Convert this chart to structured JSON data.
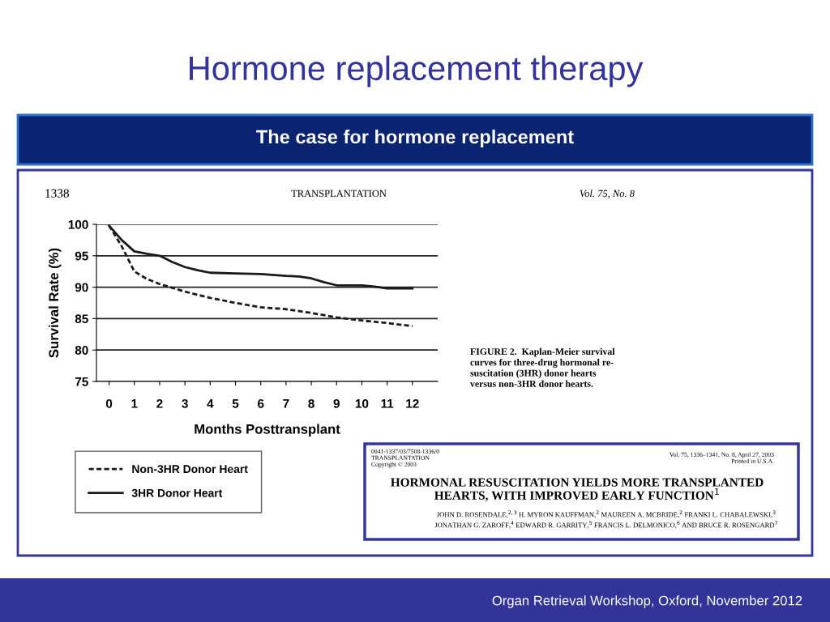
{
  "chart_data": {
    "type": "line",
    "title": "Hormone replacement therapy",
    "subtitle": "The case for hormone replacement",
    "xlabel": "Months Posttransplant",
    "ylabel": "Survival Rate (%)",
    "xlim": [
      -0.5,
      13
    ],
    "xticks": [
      0,
      1,
      2,
      3,
      4,
      5,
      6,
      7,
      8,
      9,
      10,
      11,
      12
    ],
    "ylim": [
      75,
      100
    ],
    "yticks": [
      75,
      80,
      85,
      90,
      95,
      100
    ],
    "grid": "y",
    "legend": "bottom left",
    "marker": "none",
    "series": [
      {
        "name": "Non-3HR Donor Heart",
        "color": "#1a1a1a",
        "line_style": "dashed",
        "x": [
          0,
          0.5,
          1,
          1.5,
          2,
          3,
          4,
          5,
          6,
          7,
          8,
          9,
          10,
          11,
          12
        ],
        "values": [
          99.8,
          96.5,
          92.5,
          91.3,
          90.5,
          89.3,
          88.3,
          87.5,
          86.8,
          86.5,
          85.9,
          85.2,
          84.7,
          84.3,
          83.8
        ]
      },
      {
        "name": "3HR Donor Heart",
        "color": "#1a1a1a",
        "line_style": "solid",
        "x": [
          0,
          0.5,
          1,
          1.5,
          2,
          2.5,
          3,
          3.5,
          4,
          5,
          6,
          7,
          7.5,
          8,
          8.5,
          9,
          10,
          10.5,
          11,
          12
        ],
        "values": [
          99.8,
          97.5,
          95.7,
          95.3,
          95.0,
          94.0,
          93.2,
          92.7,
          92.3,
          92.2,
          92.1,
          91.8,
          91.7,
          91.4,
          90.8,
          90.3,
          90.3,
          90.1,
          89.8,
          89.8
        ]
      }
    ],
    "annotations": [
      "1338",
      "TRANSPLANTATION",
      "Vol. 75, No. 8",
      "FIGURE 2.  Kaplan-Meier survival\ncurves for three-drug hormonal re-\nsuscitation (3HR) donor hearts\nversus non-3HR donor hearts.",
      "0041-1337/03/7508-1336/0\nTRANSPLANTATION\nCopyright © 2003",
      "Vol. 75, 1336–1341, No. 8, April 27, 2003\nPrinted in U.S.A.",
      "HORMONAL RESUSCITATION YIELDS MORE TRANSPLANTED\nHEARTS, WITH IMPROVED EARLY FUNCTION$^{1}$",
      "JOHN D. ROSENDALE,$^{2,3}$ H. MYRON KAUFFMAN,$^{2}$ MAUREEN A. MCBRIDE,$^{2}$ FRANKI L. CHABALEWSKI,$^{3}$\nJONATHAN G. ZAROFF,$^{4}$ EDWARD R. GARRITY,$^{5}$ FRANCIS L. DELMONICO,$^{6}$ AND BRUCE R. ROSENGARD$^{7}$",
      "Organ Retrieval Workshop, Oxford, November 2012"
    ]
  }
}
